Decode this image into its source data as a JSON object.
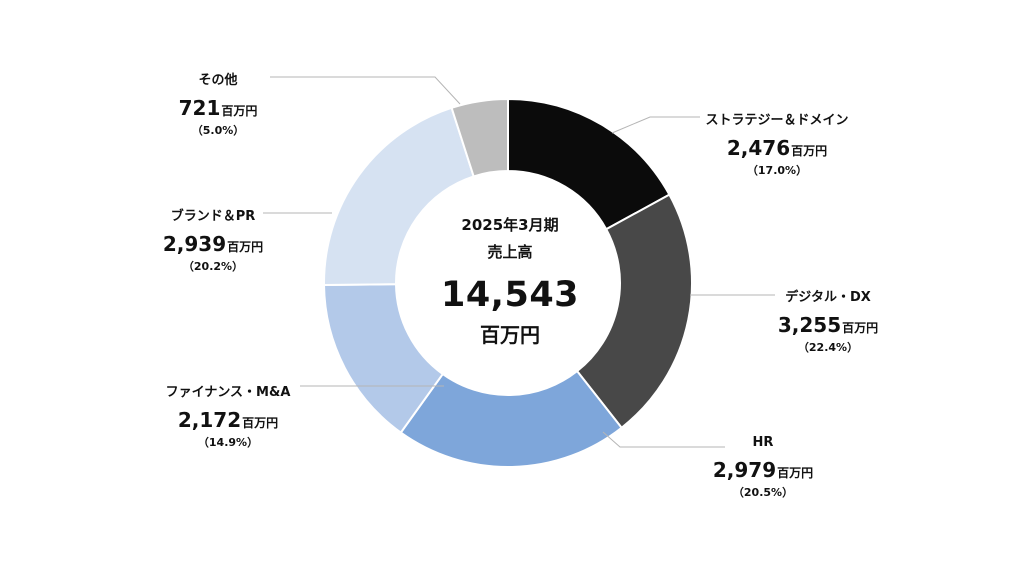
{
  "center": {
    "period": "2025年3月期",
    "title": "売上高",
    "total": "14,543",
    "unit": "百万円"
  },
  "chart_data": {
    "type": "pie",
    "unit": "百万円",
    "categories": [
      "ストラテジー＆ドメイン",
      "デジタル・DX",
      "HR",
      "ファイナンス・M&A",
      "ブランド＆PR",
      "その他"
    ],
    "values": [
      2476,
      3255,
      2979,
      2172,
      2939,
      721
    ],
    "value_labels": [
      "2,476",
      "3,255",
      "2,979",
      "2,172",
      "2,939",
      "721"
    ],
    "percent_labels": [
      "（17.0%）",
      "（22.4%）",
      "（20.5%）",
      "（14.9%）",
      "（20.2%）",
      "（5.0%）"
    ],
    "colors": [
      "#0b0b0b",
      "#484848",
      "#7ea6da",
      "#b3c9e9",
      "#d6e2f2",
      "#bdbdbd"
    ],
    "donut": true,
    "start_angle": "12 o'clock",
    "direction": "clockwise"
  }
}
